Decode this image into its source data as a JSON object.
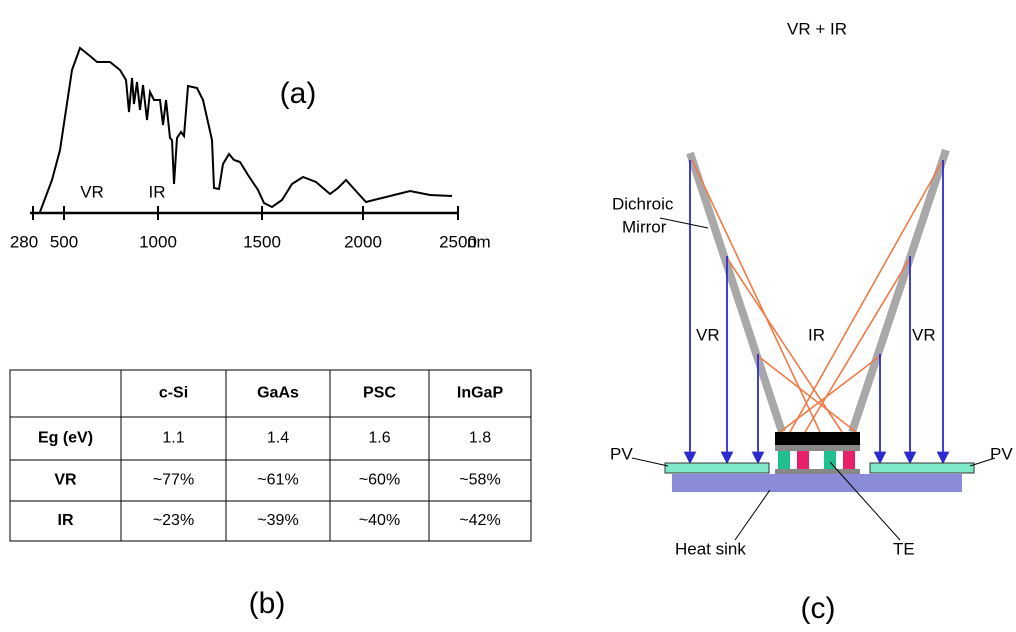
{
  "panel_a": {
    "label": "(a)",
    "ticks": [
      "280",
      "500",
      "1000",
      "1500",
      "2000",
      "2500"
    ],
    "unit": "nm",
    "regions": [
      "VR",
      "IR"
    ]
  },
  "table": {
    "header": [
      "c-Si",
      "GaAs",
      "PSC",
      "InGaP"
    ],
    "rows": [
      [
        "Eg (eV)",
        "1.1",
        "1.4",
        "1.6",
        "1.8"
      ],
      [
        "VR",
        "~77%",
        "~61%",
        "~60%",
        "~58%"
      ],
      [
        "IR",
        "~23%",
        "~39%",
        "~40%",
        "~42%"
      ]
    ]
  },
  "panel_b": {
    "label": "(b)"
  },
  "panel_c": {
    "label": "(c)",
    "title": "VR + IR",
    "mirror_label": [
      "Dichroic",
      "Mirror"
    ],
    "beam_labels": [
      "VR",
      "IR",
      "VR"
    ],
    "pv_labels": [
      "PV",
      "PV"
    ],
    "heat_sink": "Heat sink",
    "te": "TE"
  }
}
